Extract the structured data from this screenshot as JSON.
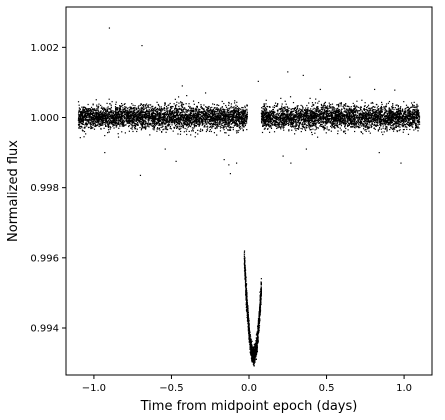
{
  "chart_data": {
    "type": "scatter",
    "title": "",
    "xlabel": "Time from midpoint epoch (days)",
    "ylabel": "Normalized flux",
    "xlim": [
      -1.18,
      1.18
    ],
    "ylim": [
      0.99266,
      1.00315
    ],
    "x_ticks": [
      -1.0,
      -0.5,
      0.0,
      0.5,
      1.0
    ],
    "x_tick_labels": [
      "−1.0",
      "−0.5",
      "0.0",
      "0.5",
      "1.0"
    ],
    "y_ticks": [
      0.994,
      0.996,
      0.998,
      1.0,
      1.002
    ],
    "y_tick_labels": [
      "0.994",
      "0.996",
      "0.998",
      "1.000",
      "1.002"
    ],
    "grid": false,
    "legend": "none",
    "marker_color": "#000000",
    "series": [
      {
        "points_description_note": "",
        "baseline_flux": 1.0,
        "baseline_scatter": 0.0003,
        "out_of_transit_ranges": [
          [
            -1.1,
            -0.01
          ],
          [
            0.08,
            1.1
          ]
        ],
        "transit_center": 0.03,
        "transit_depth_min_flux": 0.9932,
        "transit_duration_full": 0.1,
        "data_gap": [
          -0.01,
          0.08
        ],
        "outliers": [
          {
            "x": -0.9,
            "y": 1.00255
          },
          {
            "x": -0.69,
            "y": 1.00205
          },
          {
            "x": 0.06,
            "y": 1.00103
          },
          {
            "x": 0.25,
            "y": 1.0013
          },
          {
            "x": 0.35,
            "y": 1.0012
          },
          {
            "x": 0.46,
            "y": 1.0008
          },
          {
            "x": 0.65,
            "y": 1.00115
          },
          {
            "x": 0.81,
            "y": 1.0008
          },
          {
            "x": 0.94,
            "y": 1.00078
          },
          {
            "x": -0.43,
            "y": 1.0009
          },
          {
            "x": -0.28,
            "y": 1.0007
          },
          {
            "x": -0.7,
            "y": 0.99835
          },
          {
            "x": -0.47,
            "y": 0.99875
          },
          {
            "x": -0.13,
            "y": 0.99865
          },
          {
            "x": -0.12,
            "y": 0.9984
          },
          {
            "x": -0.54,
            "y": 0.9991
          },
          {
            "x": -0.93,
            "y": 0.999
          },
          {
            "x": 0.27,
            "y": 0.9987
          },
          {
            "x": 0.37,
            "y": 0.9991
          },
          {
            "x": 0.84,
            "y": 0.999
          },
          {
            "x": 0.98,
            "y": 0.9987
          },
          {
            "x": 0.22,
            "y": 0.9989
          },
          {
            "x": -0.16,
            "y": 0.9988
          },
          {
            "x": -0.08,
            "y": 0.9987
          }
        ]
      }
    ]
  }
}
